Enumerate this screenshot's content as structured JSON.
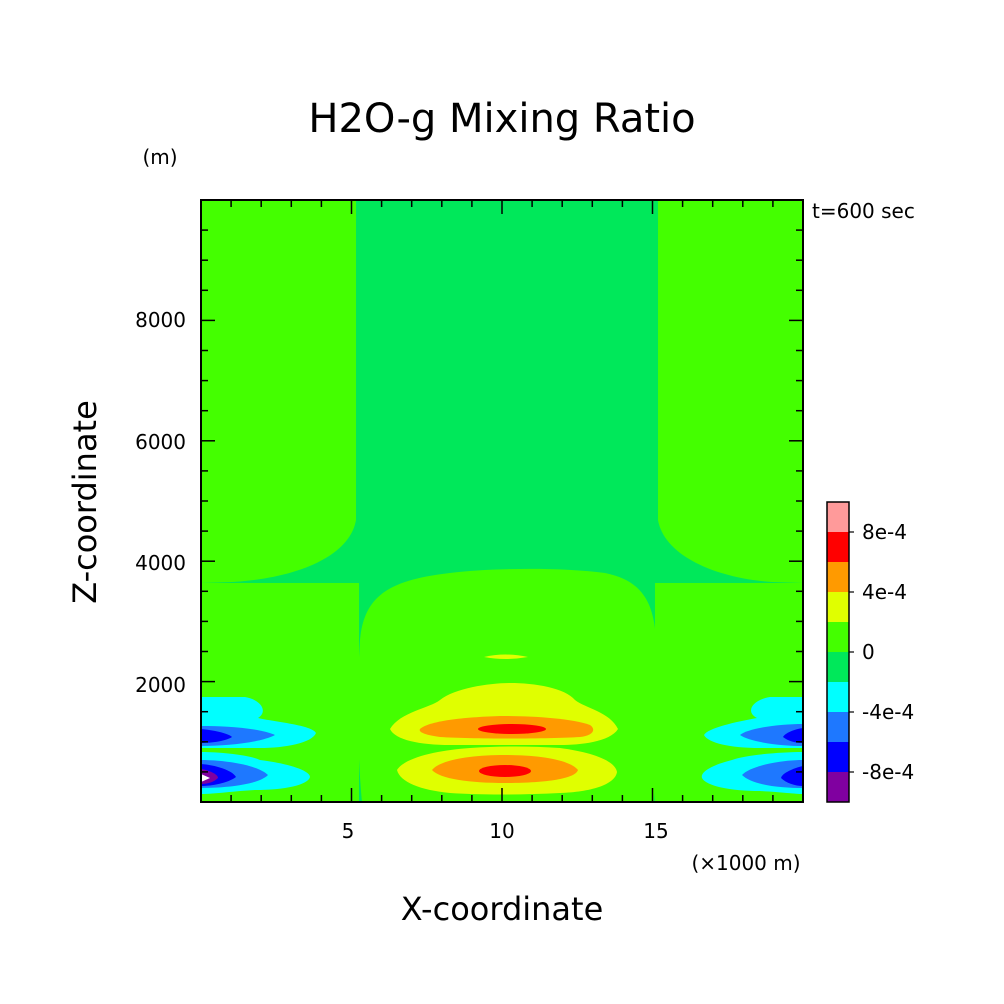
{
  "chart_data": {
    "type": "contour",
    "title": "H2O-g Mixing Ratio",
    "xlabel": "X-coordinate",
    "ylabel": "Z-coordinate",
    "x_unit": "(×1000 m)",
    "y_unit": "(m)",
    "time_label": "t=600 sec",
    "xlim": [
      0,
      20
    ],
    "ylim": [
      0,
      10000
    ],
    "x_ticks": [
      5,
      10,
      15
    ],
    "y_ticks": [
      2000,
      4000,
      6000,
      8000
    ],
    "x_tick_labels": [
      "5",
      "10",
      "15"
    ],
    "y_tick_labels": [
      "2000",
      "4000",
      "6000",
      "8000"
    ],
    "colorbar": {
      "levels": [
        -0.001,
        -0.0008,
        -0.0006,
        -0.0004,
        -0.0002,
        0,
        0.0002,
        0.0004,
        0.0006,
        0.0008,
        0.001
      ],
      "colors": [
        "#8000a0",
        "#0000ff",
        "#1e78ff",
        "#00ffff",
        "#00e85a",
        "#44ff00",
        "#e0ff00",
        "#ff9a00",
        "#ff0000",
        "#ff9a9a"
      ],
      "tick_labels": [
        "8e-4",
        "4e-4",
        "0",
        "-4e-4",
        "-8e-4"
      ]
    },
    "regions": [
      {
        "x": [
          0,
          5
        ],
        "z": [
          3700,
          10000
        ],
        "value": "0 to 2e-4"
      },
      {
        "x": [
          15,
          20
        ],
        "z": [
          3700,
          10000
        ],
        "value": "0 to 2e-4"
      },
      {
        "x": [
          5,
          15
        ],
        "z": [
          4000,
          10000
        ],
        "value": "-2e-4 to 0"
      },
      {
        "x": [
          5.5,
          14.5
        ],
        "z": [
          0,
          3900
        ],
        "value": "0 to 2e-4"
      },
      {
        "x": [
          10,
          10
        ],
        "z": [
          1300,
          1300
        ],
        "value": "> 6e-4"
      },
      {
        "x": [
          10,
          10
        ],
        "z": [
          550,
          550
        ],
        "value": "> 6e-4"
      },
      {
        "x": [
          0,
          0
        ],
        "z": [
          400,
          400
        ],
        "value": "< -8e-4"
      },
      {
        "x": [
          20,
          20
        ],
        "z": [
          1100,
          1100
        ],
        "value": "< -6e-4"
      }
    ]
  },
  "colors": {
    "background": "#ffffff",
    "axis": "#000000"
  }
}
